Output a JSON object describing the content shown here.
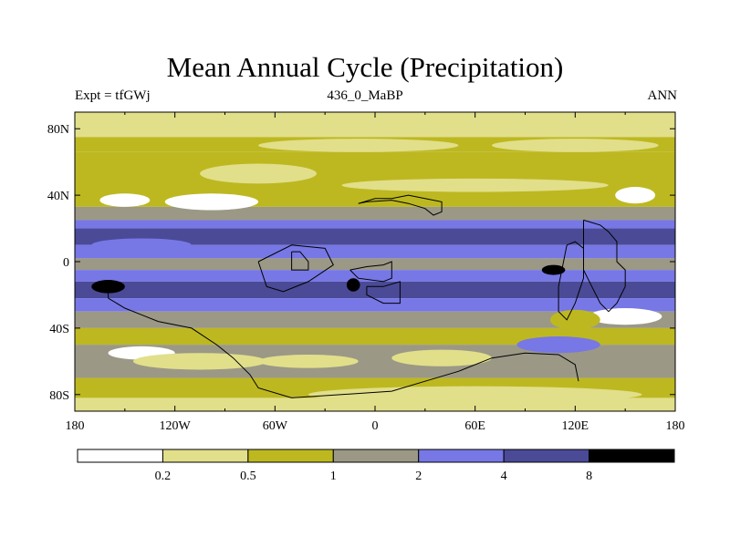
{
  "chart_data": {
    "type": "heatmap",
    "title": "Mean Annual Cycle (Precipitation)",
    "subtitle_left": "Expt = tfGWj",
    "subtitle_center": "436_0_MaBP",
    "subtitle_right": "ANN",
    "x_range": [
      -180,
      180
    ],
    "y_range": [
      -90,
      90
    ],
    "x_ticks": [
      {
        "value": -180,
        "label": "180"
      },
      {
        "value": -120,
        "label": "120W"
      },
      {
        "value": -60,
        "label": "60W"
      },
      {
        "value": 0,
        "label": "0"
      },
      {
        "value": 60,
        "label": "60E"
      },
      {
        "value": 120,
        "label": "120E"
      },
      {
        "value": 180,
        "label": "180"
      }
    ],
    "y_ticks": [
      {
        "value": 80,
        "label": "80N"
      },
      {
        "value": 40,
        "label": "40N"
      },
      {
        "value": 0,
        "label": "0"
      },
      {
        "value": -40,
        "label": "40S"
      },
      {
        "value": -80,
        "label": "80S"
      }
    ],
    "colorbar": {
      "levels": [
        "0.2",
        "0.5",
        "1",
        "2",
        "4",
        "8"
      ],
      "colors": [
        "#ffffff",
        "#e1df8a",
        "#bdb820",
        "#9b9886",
        "#7777e6",
        "#4a4a97",
        "#000000"
      ]
    },
    "zonal_bands": [
      {
        "lat_max": 90,
        "lat_min": 75,
        "class": 1
      },
      {
        "lat_max": 75,
        "lat_min": 66,
        "class": 2
      },
      {
        "lat_max": 66,
        "lat_min": 45,
        "class": 2
      },
      {
        "lat_max": 45,
        "lat_min": 33,
        "class": 2
      },
      {
        "lat_max": 33,
        "lat_min": 25,
        "class": 3
      },
      {
        "lat_max": 25,
        "lat_min": 20,
        "class": 4
      },
      {
        "lat_max": 20,
        "lat_min": 10,
        "class": 5
      },
      {
        "lat_max": 10,
        "lat_min": 2,
        "class": 4
      },
      {
        "lat_max": 2,
        "lat_min": -5,
        "class": 3
      },
      {
        "lat_max": -5,
        "lat_min": -12,
        "class": 4
      },
      {
        "lat_max": -12,
        "lat_min": -22,
        "class": 5
      },
      {
        "lat_max": -22,
        "lat_min": -30,
        "class": 4
      },
      {
        "lat_max": -30,
        "lat_min": -40,
        "class": 3
      },
      {
        "lat_max": -40,
        "lat_min": -50,
        "class": 2
      },
      {
        "lat_max": -50,
        "lat_min": -70,
        "class": 3
      },
      {
        "lat_max": -70,
        "lat_min": -82,
        "class": 2
      },
      {
        "lat_max": -82,
        "lat_min": -90,
        "class": 1
      }
    ],
    "patches": [
      {
        "lon": -10,
        "lat": 70,
        "rx": 60,
        "ry": 4,
        "class": 1
      },
      {
        "lon": 120,
        "lat": 70,
        "rx": 50,
        "ry": 4,
        "class": 1
      },
      {
        "lon": -150,
        "lat": 37,
        "rx": 15,
        "ry": 4,
        "class": 0
      },
      {
        "lon": -98,
        "lat": 36,
        "rx": 28,
        "ry": 5,
        "class": 0
      },
      {
        "lon": 156,
        "lat": 40,
        "rx": 12,
        "ry": 5,
        "class": 0
      },
      {
        "lon": -70,
        "lat": 53,
        "rx": 35,
        "ry": 6,
        "class": 1
      },
      {
        "lon": 60,
        "lat": 46,
        "rx": 80,
        "ry": 4,
        "class": 1
      },
      {
        "lon": -140,
        "lat": 10,
        "rx": 30,
        "ry": 4,
        "class": 4
      },
      {
        "lon": -160,
        "lat": -15,
        "rx": 10,
        "ry": 4,
        "class": 6
      },
      {
        "lon": -13,
        "lat": -14,
        "rx": 4,
        "ry": 4,
        "class": 6
      },
      {
        "lon": 107,
        "lat": -5,
        "rx": 7,
        "ry": 3,
        "class": 6
      },
      {
        "lon": 150,
        "lat": -33,
        "rx": 22,
        "ry": 5,
        "class": 0
      },
      {
        "lon": -140,
        "lat": -55,
        "rx": 20,
        "ry": 4,
        "class": 0
      },
      {
        "lon": -105,
        "lat": -60,
        "rx": 40,
        "ry": 5,
        "class": 1
      },
      {
        "lon": -40,
        "lat": -60,
        "rx": 30,
        "ry": 4,
        "class": 1
      },
      {
        "lon": 40,
        "lat": -58,
        "rx": 30,
        "ry": 5,
        "class": 1
      },
      {
        "lon": 110,
        "lat": -50,
        "rx": 25,
        "ry": 5,
        "class": 4
      },
      {
        "lon": 60,
        "lat": -80,
        "rx": 100,
        "ry": 5,
        "class": 1
      },
      {
        "lon": 120,
        "lat": -35,
        "rx": 15,
        "ry": 6,
        "class": 2
      }
    ],
    "land_outlines": [
      {
        "name": "continent-north-a",
        "points": [
          [
            -10,
            35
          ],
          [
            -5,
            36
          ],
          [
            10,
            37
          ],
          [
            20,
            35
          ],
          [
            30,
            32
          ],
          [
            35,
            28
          ],
          [
            40,
            30
          ],
          [
            40,
            36
          ],
          [
            30,
            38
          ],
          [
            20,
            40
          ],
          [
            10,
            38
          ],
          [
            0,
            38
          ],
          [
            -10,
            35
          ]
        ]
      },
      {
        "name": "continent-africa",
        "points": [
          [
            -15,
            -5
          ],
          [
            -5,
            -3
          ],
          [
            5,
            -2
          ],
          [
            10,
            0
          ],
          [
            10,
            -10
          ],
          [
            5,
            -12
          ],
          [
            -10,
            -10
          ],
          [
            -15,
            -5
          ]
        ]
      },
      {
        "name": "continent-south-east",
        "points": [
          [
            -5,
            -15
          ],
          [
            5,
            -15
          ],
          [
            15,
            -12
          ],
          [
            15,
            -25
          ],
          [
            5,
            -25
          ],
          [
            -5,
            -20
          ],
          [
            -5,
            -15
          ]
        ]
      },
      {
        "name": "continent-west-piece",
        "points": [
          [
            -50,
            6
          ],
          [
            -45,
            6
          ],
          [
            -40,
            0
          ],
          [
            -40,
            -5
          ],
          [
            -50,
            -5
          ],
          [
            -50,
            6
          ]
        ]
      },
      {
        "name": "continent-east",
        "points": [
          [
            115,
            10
          ],
          [
            120,
            12
          ],
          [
            125,
            8
          ],
          [
            125,
            -10
          ],
          [
            120,
            -25
          ],
          [
            115,
            -35
          ],
          [
            110,
            -30
          ],
          [
            110,
            -15
          ],
          [
            115,
            10
          ]
        ]
      },
      {
        "name": "continent-east-2",
        "points": [
          [
            125,
            25
          ],
          [
            135,
            22
          ],
          [
            140,
            18
          ],
          [
            145,
            12
          ],
          [
            145,
            0
          ],
          [
            150,
            -5
          ],
          [
            150,
            -15
          ],
          [
            145,
            -25
          ],
          [
            140,
            -30
          ],
          [
            135,
            -25
          ],
          [
            130,
            -15
          ],
          [
            125,
            -5
          ],
          [
            125,
            25
          ]
        ]
      },
      {
        "name": "gondwana-south",
        "points": [
          [
            -160,
            -22
          ],
          [
            -150,
            -28
          ],
          [
            -140,
            -32
          ],
          [
            -130,
            -36
          ],
          [
            -110,
            -40
          ],
          [
            -95,
            -50
          ],
          [
            -85,
            -58
          ],
          [
            -75,
            -68
          ],
          [
            -70,
            -76
          ],
          [
            -50,
            -82
          ],
          [
            -20,
            -80
          ],
          [
            10,
            -78
          ],
          [
            30,
            -72
          ],
          [
            50,
            -66
          ],
          [
            70,
            -58
          ],
          [
            90,
            -55
          ],
          [
            110,
            -56
          ],
          [
            120,
            -62
          ],
          [
            122,
            -72
          ]
        ]
      },
      {
        "name": "gondwana-north",
        "points": [
          [
            -160,
            -22
          ],
          [
            -160,
            -12
          ]
        ]
      },
      {
        "name": "land-ne",
        "points": [
          [
            -70,
            0
          ],
          [
            -50,
            10
          ],
          [
            -30,
            8
          ],
          [
            -25,
            -2
          ],
          [
            -40,
            -12
          ],
          [
            -55,
            -18
          ],
          [
            -65,
            -15
          ],
          [
            -70,
            0
          ]
        ]
      }
    ]
  }
}
